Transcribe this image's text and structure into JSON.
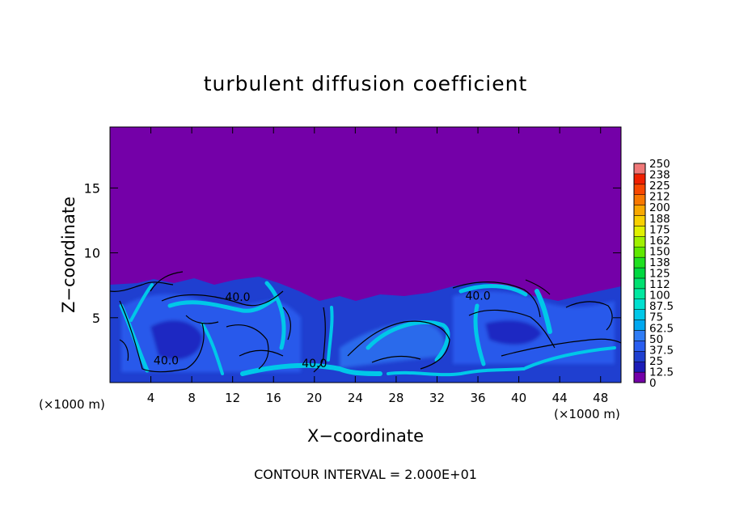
{
  "chart_data": {
    "type": "heatmap",
    "title": "turbulent diffusion coefficient",
    "xlabel": "X−coordinate",
    "ylabel": "Z−coordinate",
    "x_unit_left": "(×1000 m)",
    "x_unit_right": "(×1000 m)",
    "footer": "CONTOUR INTERVAL = 2.000E+01",
    "xlim": [
      0,
      50
    ],
    "ylim": [
      0,
      19.7
    ],
    "x_ticks": [
      4,
      8,
      12,
      16,
      20,
      24,
      28,
      32,
      36,
      40,
      44,
      48
    ],
    "x_tick_labels": [
      "4",
      "8",
      "12",
      "16",
      "20",
      "24",
      "28",
      "32",
      "36",
      "40",
      "44",
      "48"
    ],
    "y_ticks": [
      5,
      10,
      15
    ],
    "y_tick_labels": [
      "5",
      "10",
      "15"
    ],
    "colorbar": {
      "levels": [
        0,
        12.5,
        25,
        37.5,
        50,
        62.5,
        75,
        87.5,
        100,
        112,
        125,
        138,
        150,
        162,
        175,
        188,
        200,
        212,
        225,
        238,
        250
      ],
      "labels": [
        "0",
        "12.5",
        "25",
        "37.5",
        "50",
        "62.5",
        "75",
        "87.5",
        "100",
        "112",
        "125",
        "138",
        "150",
        "162",
        "175",
        "188",
        "200",
        "212",
        "225",
        "238",
        "250"
      ],
      "colors": [
        "#7400a8",
        "#1c1cb8",
        "#1f3fd0",
        "#2a5ef0",
        "#2f7cf6",
        "#00a8f0",
        "#00c8e8",
        "#00e0d0",
        "#00e8a0",
        "#00e070",
        "#00d840",
        "#20e020",
        "#60e800",
        "#a0f000",
        "#e0f000",
        "#f8d000",
        "#f8a800",
        "#f87800",
        "#f84800",
        "#f02000",
        "#f07878"
      ]
    },
    "contour_labels": [
      {
        "text": "40.0",
        "x": 20.0,
        "y": 1.2
      },
      {
        "text": "40.0",
        "x": 12.5,
        "y": 6.3
      },
      {
        "text": "40.0",
        "x": 5.5,
        "y": 1.4
      },
      {
        "text": "40.0",
        "x": 36.0,
        "y": 6.4
      }
    ],
    "boundary_layer_top_km": 7.5,
    "grid": false
  }
}
